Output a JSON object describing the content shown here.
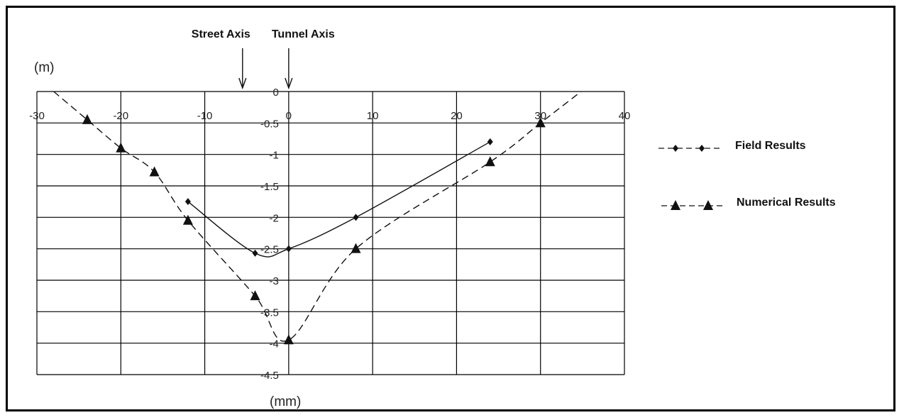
{
  "chart_data": {
    "type": "line",
    "xlabel": "(mm)",
    "ylabel": "(m)",
    "xlim": [
      -30,
      40
    ],
    "ylim": [
      -4.5,
      0
    ],
    "x_ticks": [
      "-30",
      "-20",
      "-10",
      "0",
      "10",
      "20",
      "30",
      "40"
    ],
    "y_ticks": [
      "0",
      "-0.5",
      "-1",
      "-1.5",
      "-2",
      "-2.5",
      "-3",
      "-3.5",
      "-4",
      "-4.5"
    ],
    "grid": true,
    "legend_position": "right",
    "annotations": [
      {
        "text": "Street Axis",
        "x": -5.5
      },
      {
        "text": "Tunnel Axis",
        "x": 0
      }
    ],
    "series": [
      {
        "name": "Field  Results",
        "marker": "diamond",
        "line": "solid",
        "points": [
          [
            -12,
            -1.75
          ],
          [
            -4,
            -2.57
          ],
          [
            0,
            -2.5
          ],
          [
            8,
            -2.0
          ],
          [
            24,
            -0.8
          ]
        ]
      },
      {
        "name": "Numerical Results",
        "marker": "triangle",
        "line": "dashed",
        "points": [
          [
            -24,
            -0.45
          ],
          [
            -20,
            -0.9
          ],
          [
            -16,
            -1.28
          ],
          [
            -12,
            -2.05
          ],
          [
            -4,
            -3.25
          ],
          [
            0,
            -3.95
          ],
          [
            8,
            -2.5
          ],
          [
            24,
            -1.12
          ],
          [
            30,
            -0.5
          ]
        ]
      }
    ]
  }
}
